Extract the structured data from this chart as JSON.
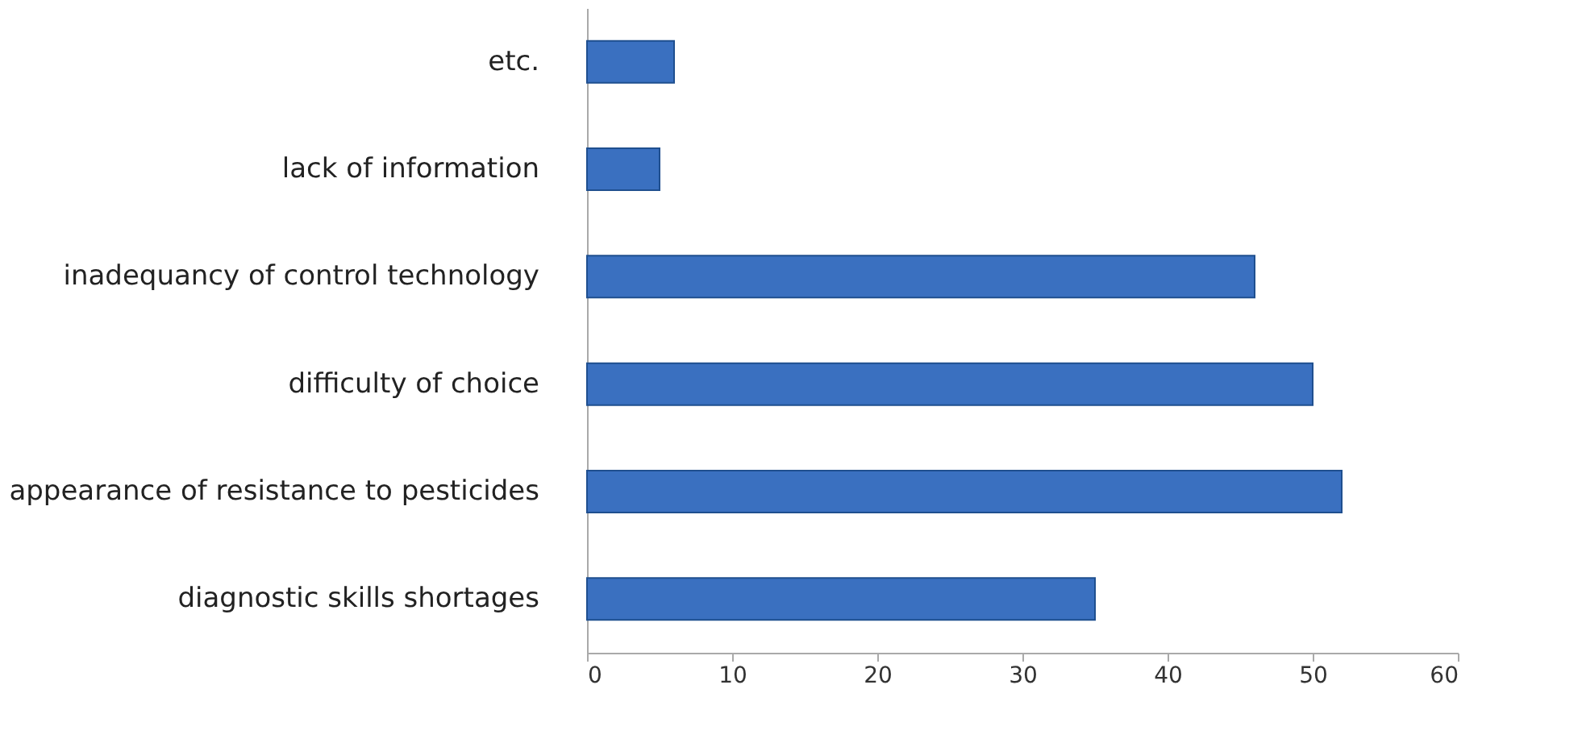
{
  "chart_data": {
    "type": "bar",
    "orientation": "horizontal",
    "categories": [
      "etc.",
      "lack of information",
      "inadequancy of control technology",
      "difficulty of choice",
      "appearance of resistance to pesticides",
      "diagnostic skills shortages"
    ],
    "values": [
      6,
      5,
      46,
      50,
      52,
      35
    ],
    "color": "#3a70c0",
    "xlim": [
      0,
      60
    ],
    "xticks": [
      0,
      10,
      20,
      30,
      40,
      50,
      60
    ],
    "grid": false
  }
}
